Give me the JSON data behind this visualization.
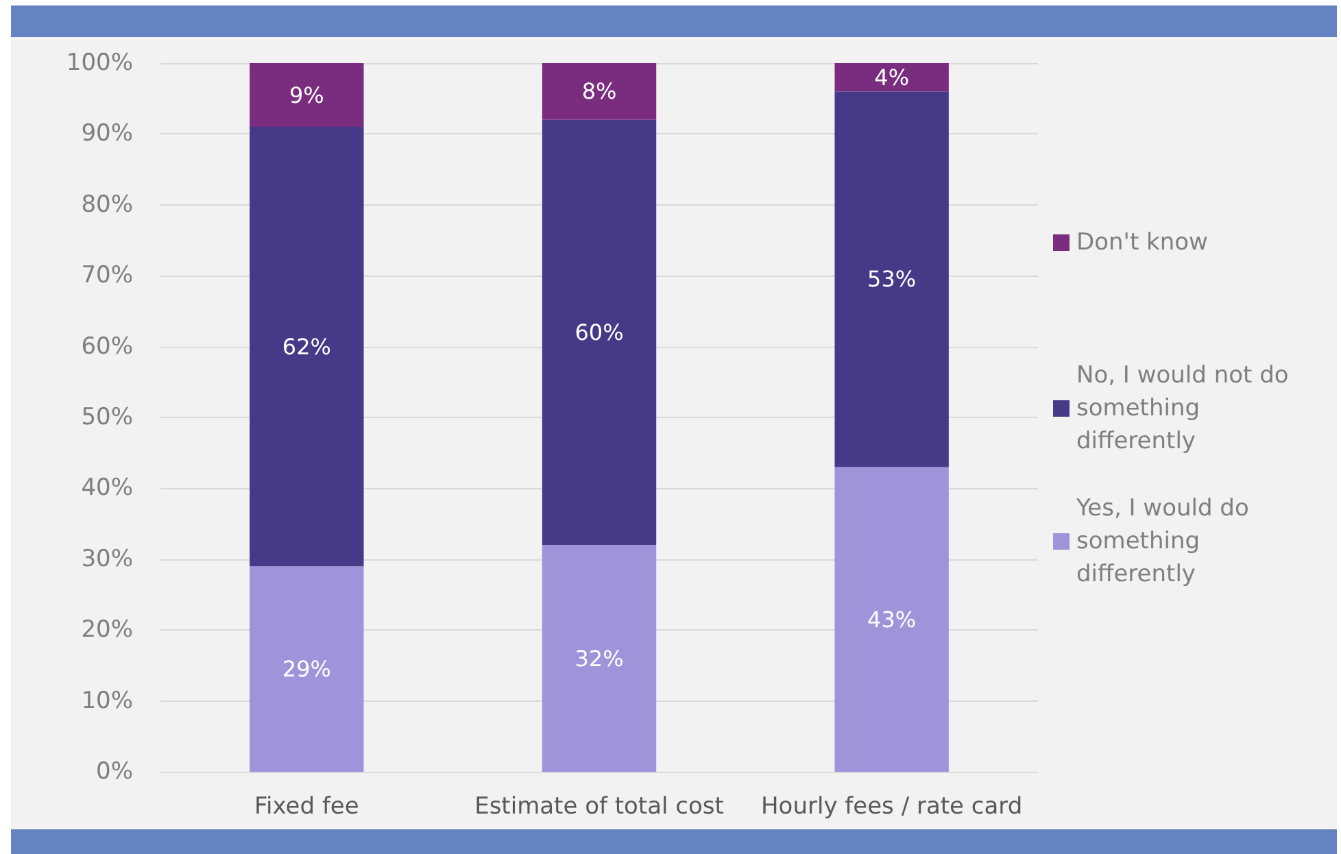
{
  "chart_data": {
    "type": "bar",
    "stacked": true,
    "categories": [
      "Fixed fee",
      "Estimate of total cost",
      "Hourly fees / rate card"
    ],
    "series": [
      {
        "name": "Yes, I would do something differently",
        "color": "#9d94da",
        "values": [
          29,
          32,
          43
        ],
        "value_labels": [
          "29%",
          "32%",
          "43%"
        ]
      },
      {
        "name": "No, I would not do something differently",
        "color": "#453a88",
        "values": [
          62,
          60,
          53
        ],
        "value_labels": [
          "62%",
          "60%",
          "53%"
        ]
      },
      {
        "name": "Don't know",
        "color": "#7a2c7f",
        "values": [
          9,
          8,
          4
        ],
        "value_labels": [
          "9%",
          "8%",
          "4%"
        ]
      }
    ],
    "ylim": [
      0,
      100
    ],
    "yticks": [
      {
        "value": 0,
        "label": "0%"
      },
      {
        "value": 10,
        "label": "10%"
      },
      {
        "value": 20,
        "label": "20%"
      },
      {
        "value": 30,
        "label": "30%"
      },
      {
        "value": 40,
        "label": "40%"
      },
      {
        "value": 50,
        "label": "50%"
      },
      {
        "value": 60,
        "label": "60%"
      },
      {
        "value": 70,
        "label": "70%"
      },
      {
        "value": 80,
        "label": "80%"
      },
      {
        "value": 90,
        "label": "90%"
      },
      {
        "value": 100,
        "label": "100%"
      }
    ],
    "grid": "y",
    "legend": "right"
  }
}
